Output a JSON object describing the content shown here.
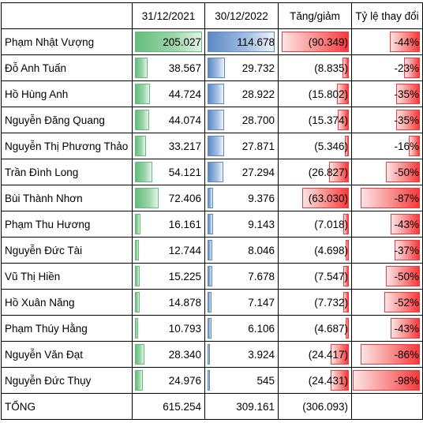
{
  "header": {
    "name_col": "",
    "col_2021": "31/12/2021",
    "col_2022": "30/12/2022",
    "col_change": "Tăng/giảm",
    "col_pct": "Tỷ lệ thay đổi"
  },
  "colors": {
    "bar_2021": "#63be7b",
    "bar_2022": "#5a8ac6",
    "bar_negative": "#f8393b"
  },
  "rows": [
    {
      "name": "Phạm Nhật Vượng",
      "v2021": "205.027",
      "v2022": "114.678",
      "change": "(90.349)",
      "pct": "-44%",
      "n2021": 205027,
      "n2022": 114678,
      "nchange": -90349,
      "npct": -44
    },
    {
      "name": "Đỗ Anh Tuấn",
      "v2021": "38.567",
      "v2022": "29.732",
      "change": "(8.835)",
      "pct": "-23%",
      "n2021": 38567,
      "n2022": 29732,
      "nchange": -8835,
      "npct": -23
    },
    {
      "name": "Hồ Hùng Anh",
      "v2021": "44.724",
      "v2022": "28.922",
      "change": "(15.802)",
      "pct": "-35%",
      "n2021": 44724,
      "n2022": 28922,
      "nchange": -15802,
      "npct": -35
    },
    {
      "name": "Nguyễn Đăng Quang",
      "v2021": "44.074",
      "v2022": "28.700",
      "change": "(15.374)",
      "pct": "-35%",
      "n2021": 44074,
      "n2022": 28700,
      "nchange": -15374,
      "npct": -35
    },
    {
      "name": "Nguyễn Thị Phương Thảo",
      "v2021": "33.217",
      "v2022": "27.871",
      "change": "(5.346)",
      "pct": "-16%",
      "n2021": 33217,
      "n2022": 27871,
      "nchange": -5346,
      "npct": -16
    },
    {
      "name": "Trần Đình Long",
      "v2021": "54.121",
      "v2022": "27.294",
      "change": "(26.827)",
      "pct": "-50%",
      "n2021": 54121,
      "n2022": 27294,
      "nchange": -26827,
      "npct": -50
    },
    {
      "name": "Bùi Thành Nhơn",
      "v2021": "72.406",
      "v2022": "9.376",
      "change": "(63.030)",
      "pct": "-87%",
      "n2021": 72406,
      "n2022": 9376,
      "nchange": -63030,
      "npct": -87
    },
    {
      "name": "Phạm Thu Hương",
      "v2021": "16.161",
      "v2022": "9.143",
      "change": "(7.018)",
      "pct": "-43%",
      "n2021": 16161,
      "n2022": 9143,
      "nchange": -7018,
      "npct": -43
    },
    {
      "name": "Nguyễn Đức Tài",
      "v2021": "12.744",
      "v2022": "8.046",
      "change": "(4.698)",
      "pct": "-37%",
      "n2021": 12744,
      "n2022": 8046,
      "nchange": -4698,
      "npct": -37
    },
    {
      "name": "Vũ Thị Hiền",
      "v2021": "15.225",
      "v2022": "7.678",
      "change": "(7.547)",
      "pct": "-50%",
      "n2021": 15225,
      "n2022": 7678,
      "nchange": -7547,
      "npct": -50
    },
    {
      "name": "Hồ Xuân Năng",
      "v2021": "14.878",
      "v2022": "7.147",
      "change": "(7.732)",
      "pct": "-52%",
      "n2021": 14878,
      "n2022": 7147,
      "nchange": -7732,
      "npct": -52
    },
    {
      "name": "Phạm Thúy Hằng",
      "v2021": "10.793",
      "v2022": "6.106",
      "change": "(4.687)",
      "pct": "-43%",
      "n2021": 10793,
      "n2022": 6106,
      "nchange": -4687,
      "npct": -43
    },
    {
      "name": "Nguyễn Văn Đạt",
      "v2021": "28.340",
      "v2022": "3.924",
      "change": "(24.417)",
      "pct": "-86%",
      "n2021": 28340,
      "n2022": 3924,
      "nchange": -24417,
      "npct": -86
    },
    {
      "name": "Nguyễn Đức Thụy",
      "v2021": "24.976",
      "v2022": "545",
      "change": "(24.431)",
      "pct": "-98%",
      "n2021": 24976,
      "n2022": 545,
      "nchange": -24431,
      "npct": -98
    }
  ],
  "total": {
    "name": "TỔNG",
    "v2021": "615.254",
    "v2022": "309.161",
    "change": "(306.093)",
    "pct": ""
  }
}
